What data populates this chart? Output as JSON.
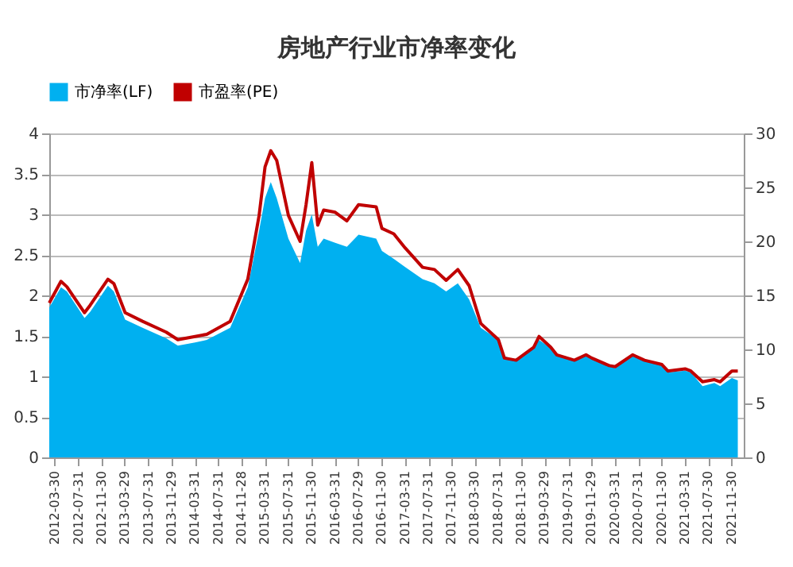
{
  "chart_data": {
    "type": "area",
    "title": "房地产行业市净率变化",
    "x": [
      "2012-03",
      "2012-05",
      "2012-06",
      "2012-09",
      "2012-10",
      "2013-01",
      "2013-02",
      "2013-04",
      "2013-07",
      "2013-11",
      "2014-01",
      "2014-04",
      "2014-06",
      "2014-10",
      "2015-01",
      "2015-03",
      "2015-04",
      "2015-05",
      "2015-06",
      "2015-08",
      "2015-10",
      "2015-11",
      "2015-12",
      "2016-01",
      "2016-02",
      "2016-04",
      "2016-06",
      "2016-08",
      "2016-11",
      "2016-12",
      "2017-02",
      "2017-04",
      "2017-07",
      "2017-09",
      "2017-11",
      "2018-01",
      "2018-03",
      "2018-05",
      "2018-08",
      "2018-09",
      "2018-11",
      "2019-02",
      "2019-03",
      "2019-05",
      "2019-06",
      "2019-09",
      "2019-11",
      "2019-12",
      "2020-03",
      "2020-04",
      "2020-07",
      "2020-09",
      "2020-12",
      "2021-01",
      "2021-04",
      "2021-05",
      "2021-07",
      "2021-09",
      "2021-10",
      "2021-12",
      "2022-01"
    ],
    "series": [
      {
        "name": "市净率(LF)",
        "type": "area",
        "color": "#00b0f0",
        "values": [
          1.85,
          2.1,
          2.05,
          1.72,
          1.8,
          2.12,
          2.05,
          1.7,
          1.6,
          1.47,
          1.38,
          1.42,
          1.45,
          1.6,
          2.1,
          2.8,
          3.2,
          3.4,
          3.2,
          2.7,
          2.4,
          2.8,
          3.0,
          2.6,
          2.7,
          2.65,
          2.6,
          2.75,
          2.7,
          2.55,
          2.45,
          2.35,
          2.2,
          2.15,
          2.05,
          2.15,
          1.95,
          1.6,
          1.45,
          1.25,
          1.2,
          1.35,
          1.45,
          1.35,
          1.28,
          1.2,
          1.27,
          1.22,
          1.13,
          1.1,
          1.25,
          1.2,
          1.13,
          1.05,
          1.07,
          1.05,
          0.88,
          0.92,
          0.88,
          0.98,
          0.95
        ]
      },
      {
        "name": "市盈率(PE)",
        "type": "line",
        "axis": "y2",
        "color": "#c00000",
        "values": [
          14.3,
          16.3,
          15.8,
          13.4,
          14.1,
          16.5,
          16.1,
          13.4,
          12.6,
          11.6,
          10.9,
          11.2,
          11.4,
          12.6,
          16.5,
          22.4,
          26.9,
          28.4,
          27.5,
          22.4,
          20,
          23.4,
          27.3,
          21.5,
          22.9,
          22.7,
          21.9,
          23.4,
          23.2,
          21.2,
          20.7,
          19.4,
          17.6,
          17.4,
          16.4,
          17.4,
          15.9,
          12.4,
          10.9,
          9.2,
          9.0,
          10.2,
          11.2,
          10.2,
          9.5,
          9.0,
          9.5,
          9.2,
          8.5,
          8.4,
          9.5,
          9.0,
          8.6,
          8.0,
          8.2,
          8.0,
          7.0,
          7.2,
          7.0,
          8.0,
          8.0
        ]
      }
    ],
    "xlim": [
      "2012-03",
      "2022-02"
    ],
    "xticks": [
      "2012-03-30",
      "2012-07-31",
      "2012-11-30",
      "2013-03-29",
      "2013-07-31",
      "2013-11-29",
      "2014-03-31",
      "2014-07-31",
      "2014-11-28",
      "2015-03-31",
      "2015-07-31",
      "2015-11-30",
      "2016-03-31",
      "2016-07-29",
      "2016-11-30",
      "2017-03-31",
      "2017-07-31",
      "2017-11-30",
      "2018-03-30",
      "2018-07-31",
      "2018-11-30",
      "2019-03-29",
      "2019-07-31",
      "2019-11-29",
      "2020-03-31",
      "2020-07-31",
      "2020-11-30",
      "2021-03-31",
      "2021-07-30",
      "2021-11-30"
    ],
    "ylim": [
      0,
      4
    ],
    "yticks": [
      0,
      0.5,
      1,
      1.5,
      2,
      2.5,
      3,
      3.5,
      4
    ],
    "y2lim": [
      0,
      30
    ],
    "y2ticks": [
      0,
      5,
      10,
      15,
      20,
      25,
      30
    ],
    "grid": "y",
    "legend": "top"
  }
}
